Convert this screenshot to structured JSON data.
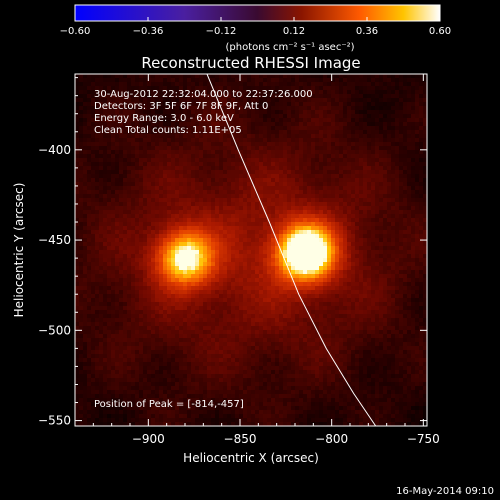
{
  "chart_data": {
    "type": "heatmap",
    "title": "Reconstructed RHESSI Image",
    "xlabel": "Heliocentric X (arcsec)",
    "ylabel": "Heliocentric Y (arcsec)",
    "xlim": [
      -940,
      -748
    ],
    "ylim": [
      -553,
      -358
    ],
    "xticks": [
      {
        "value": -900,
        "label": "−900"
      },
      {
        "value": -850,
        "label": "−850"
      },
      {
        "value": -800,
        "label": "−800"
      },
      {
        "value": -750,
        "label": "−750"
      }
    ],
    "yticks": [
      {
        "value": -400,
        "label": "−400"
      },
      {
        "value": -450,
        "label": "−450"
      },
      {
        "value": -500,
        "label": "−500"
      },
      {
        "value": -550,
        "label": "−550"
      }
    ],
    "colorbar": {
      "range": [
        -0.6,
        0.6
      ],
      "ticks": [
        {
          "value": -0.6,
          "label": "−0.60"
        },
        {
          "value": -0.36,
          "label": "−0.36"
        },
        {
          "value": -0.12,
          "label": "−0.12"
        },
        {
          "value": 0.12,
          "label": "0.12"
        },
        {
          "value": 0.36,
          "label": "0.36"
        },
        {
          "value": 0.6,
          "label": "0.60"
        }
      ],
      "unit_label": "(photons cm⁻² s⁻¹ asec⁻²)",
      "colormap": "blue-purple-red-yellow-white"
    },
    "sources": [
      {
        "x": -880,
        "y": -460,
        "peak": 0.45
      },
      {
        "x": -814,
        "y": -457,
        "peak": 0.6
      }
    ],
    "limb_points": [
      [
        -868,
        -358
      ],
      [
        -851,
        -400
      ],
      [
        -834,
        -440
      ],
      [
        -818,
        -480
      ],
      [
        -803,
        -510
      ],
      [
        -788,
        -535
      ],
      [
        -776,
        -553
      ]
    ],
    "info_lines": [
      "30-Aug-2012 22:32:04.000 to 22:37:26.000",
      "Detectors: 3F 5F 6F 7F 8F 9F, Att 0",
      "Energy Range: 3.0 - 6.0 keV",
      "Clean    Total counts: 1.11E+05"
    ],
    "peak_label": "Position of Peak = [-814,-457]",
    "timestamp": "16-May-2014 09:10",
    "colors": {
      "background": "#000000",
      "text": "#ffffff",
      "limb": "#ffffff"
    }
  }
}
